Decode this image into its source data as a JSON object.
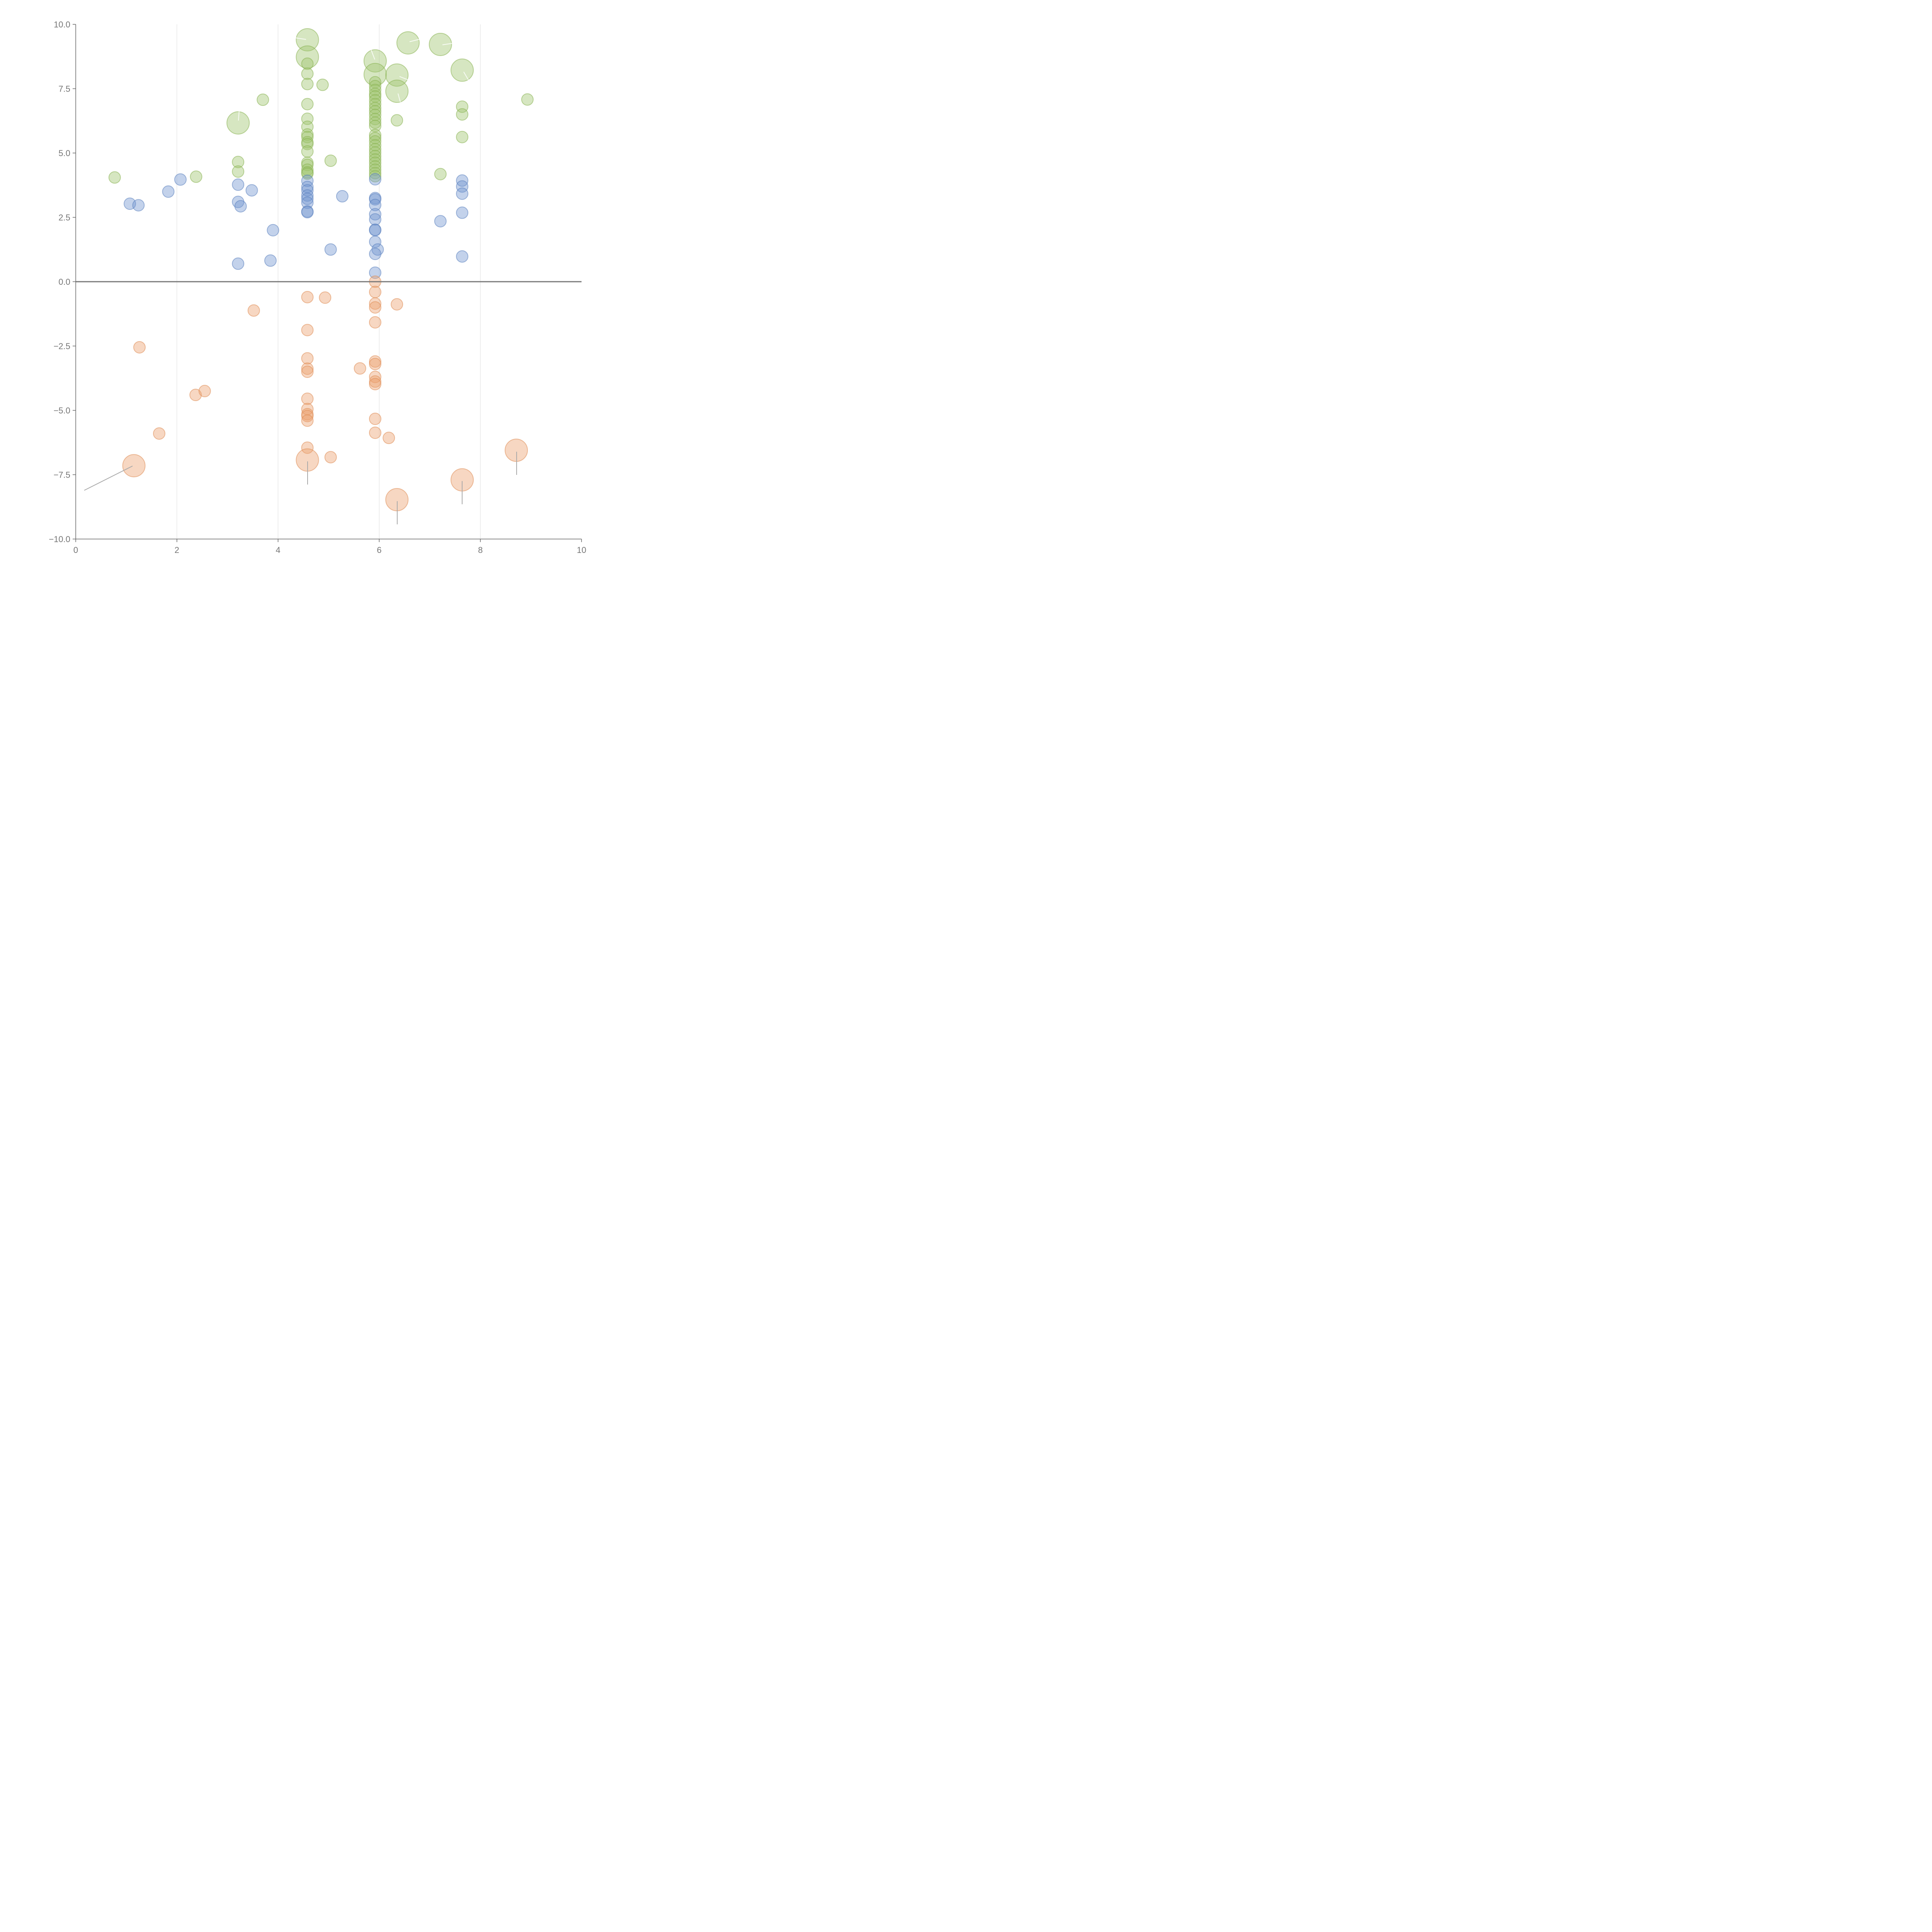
{
  "chart_data": {
    "type": "scatter",
    "subtype": "bubble",
    "title": "",
    "xlabel": "",
    "ylabel": "",
    "xlim": [
      0,
      10
    ],
    "ylim": [
      -10,
      10
    ],
    "x_ticks": [
      0,
      2,
      4,
      6,
      8,
      10
    ],
    "y_ticks": [
      -10,
      -7.5,
      -5,
      -2.5,
      0,
      2.5,
      5,
      7.5,
      10
    ],
    "x_tick_labels": [
      "0",
      "2",
      "4",
      "6",
      "8",
      "10"
    ],
    "y_tick_labels": [
      "−10.0",
      "−7.5",
      "−5.0",
      "−2.5",
      "0.0",
      "2.5",
      "5.0",
      "7.5",
      "10.0"
    ],
    "grid": "vertical",
    "reference_line_y": 0,
    "legend": "none",
    "colors": {
      "green": "#9dc36b",
      "green_stroke": "#86b04f",
      "blue": "#6f94cf",
      "blue_stroke": "#5a80be",
      "orange": "#eca06d",
      "orange_stroke": "#de8a52"
    },
    "series": [
      {
        "name": "green",
        "points": [
          {
            "x": 0.77,
            "y": 4.05,
            "size": 1
          },
          {
            "x": 2.38,
            "y": 4.08,
            "size": 1
          },
          {
            "x": 3.21,
            "y": 4.65,
            "size": 1
          },
          {
            "x": 3.21,
            "y": 4.28,
            "size": 1
          },
          {
            "x": 3.21,
            "y": 6.17,
            "size": 3
          },
          {
            "x": 3.7,
            "y": 7.07,
            "size": 1
          },
          {
            "x": 4.58,
            "y": 9.4,
            "size": 3
          },
          {
            "x": 4.58,
            "y": 8.73,
            "size": 3
          },
          {
            "x": 4.58,
            "y": 8.47,
            "size": 1
          },
          {
            "x": 4.58,
            "y": 8.08,
            "size": 1
          },
          {
            "x": 4.58,
            "y": 7.68,
            "size": 1
          },
          {
            "x": 4.58,
            "y": 6.9,
            "size": 1
          },
          {
            "x": 4.58,
            "y": 6.33,
            "size": 1
          },
          {
            "x": 4.58,
            "y": 6.02,
            "size": 1
          },
          {
            "x": 4.58,
            "y": 5.72,
            "size": 1
          },
          {
            "x": 4.58,
            "y": 5.62,
            "size": 1
          },
          {
            "x": 4.58,
            "y": 5.42,
            "size": 1
          },
          {
            "x": 4.58,
            "y": 5.35,
            "size": 1
          },
          {
            "x": 4.58,
            "y": 5.06,
            "size": 1
          },
          {
            "x": 4.58,
            "y": 4.62,
            "size": 1
          },
          {
            "x": 4.58,
            "y": 4.54,
            "size": 1
          },
          {
            "x": 4.58,
            "y": 4.35,
            "size": 1
          },
          {
            "x": 4.58,
            "y": 4.25,
            "size": 1
          },
          {
            "x": 4.58,
            "y": 4.2,
            "size": 1
          },
          {
            "x": 4.88,
            "y": 7.65,
            "size": 1
          },
          {
            "x": 5.04,
            "y": 4.7,
            "size": 1
          },
          {
            "x": 5.92,
            "y": 8.58,
            "size": 3
          },
          {
            "x": 5.92,
            "y": 8.05,
            "size": 3
          },
          {
            "x": 5.92,
            "y": 7.75,
            "size": 1
          },
          {
            "x": 5.92,
            "y": 7.6,
            "size": 1
          },
          {
            "x": 5.92,
            "y": 7.45,
            "size": 1
          },
          {
            "x": 5.92,
            "y": 7.3,
            "size": 1
          },
          {
            "x": 5.92,
            "y": 7.2,
            "size": 1
          },
          {
            "x": 5.92,
            "y": 7.05,
            "size": 1
          },
          {
            "x": 5.92,
            "y": 6.9,
            "size": 1
          },
          {
            "x": 5.92,
            "y": 6.75,
            "size": 1
          },
          {
            "x": 5.92,
            "y": 6.62,
            "size": 1
          },
          {
            "x": 5.92,
            "y": 6.48,
            "size": 1
          },
          {
            "x": 5.92,
            "y": 6.32,
            "size": 1
          },
          {
            "x": 5.92,
            "y": 6.18,
            "size": 1
          },
          {
            "x": 5.92,
            "y": 6.05,
            "size": 1
          },
          {
            "x": 5.92,
            "y": 5.7,
            "size": 1
          },
          {
            "x": 5.92,
            "y": 5.58,
            "size": 1
          },
          {
            "x": 5.92,
            "y": 5.45,
            "size": 1
          },
          {
            "x": 5.92,
            "y": 5.3,
            "size": 1
          },
          {
            "x": 5.92,
            "y": 5.15,
            "size": 1
          },
          {
            "x": 5.92,
            "y": 5.02,
            "size": 1
          },
          {
            "x": 5.92,
            "y": 4.88,
            "size": 1
          },
          {
            "x": 5.92,
            "y": 4.75,
            "size": 1
          },
          {
            "x": 5.92,
            "y": 4.62,
            "size": 1
          },
          {
            "x": 5.92,
            "y": 4.48,
            "size": 1
          },
          {
            "x": 5.92,
            "y": 4.35,
            "size": 1
          },
          {
            "x": 5.92,
            "y": 4.22,
            "size": 1
          },
          {
            "x": 5.92,
            "y": 4.1,
            "size": 1
          },
          {
            "x": 6.35,
            "y": 8.03,
            "size": 3
          },
          {
            "x": 6.35,
            "y": 7.4,
            "size": 3
          },
          {
            "x": 6.35,
            "y": 6.27,
            "size": 1
          },
          {
            "x": 6.57,
            "y": 9.28,
            "size": 3
          },
          {
            "x": 7.21,
            "y": 9.22,
            "size": 3
          },
          {
            "x": 7.21,
            "y": 4.18,
            "size": 1
          },
          {
            "x": 7.64,
            "y": 8.22,
            "size": 3
          },
          {
            "x": 7.64,
            "y": 6.8,
            "size": 1
          },
          {
            "x": 7.64,
            "y": 6.5,
            "size": 1
          },
          {
            "x": 7.64,
            "y": 5.62,
            "size": 1
          },
          {
            "x": 8.93,
            "y": 7.08,
            "size": 1
          }
        ]
      },
      {
        "name": "blue",
        "points": [
          {
            "x": 1.07,
            "y": 3.03,
            "size": 1
          },
          {
            "x": 1.24,
            "y": 2.97,
            "size": 1
          },
          {
            "x": 1.83,
            "y": 3.5,
            "size": 1
          },
          {
            "x": 2.07,
            "y": 3.97,
            "size": 1
          },
          {
            "x": 3.21,
            "y": 3.77,
            "size": 1
          },
          {
            "x": 3.21,
            "y": 3.1,
            "size": 1
          },
          {
            "x": 3.26,
            "y": 2.93,
            "size": 1
          },
          {
            "x": 3.21,
            "y": 0.7,
            "size": 1
          },
          {
            "x": 3.48,
            "y": 3.55,
            "size": 1
          },
          {
            "x": 3.85,
            "y": 0.82,
            "size": 1
          },
          {
            "x": 3.9,
            "y": 2.0,
            "size": 1
          },
          {
            "x": 4.58,
            "y": 3.92,
            "size": 1
          },
          {
            "x": 4.58,
            "y": 3.68,
            "size": 1
          },
          {
            "x": 4.58,
            "y": 3.55,
            "size": 1
          },
          {
            "x": 4.58,
            "y": 3.35,
            "size": 1
          },
          {
            "x": 4.58,
            "y": 3.22,
            "size": 1
          },
          {
            "x": 4.58,
            "y": 3.07,
            "size": 1
          },
          {
            "x": 4.58,
            "y": 2.73,
            "size": 1
          },
          {
            "x": 4.58,
            "y": 2.7,
            "size": 1
          },
          {
            "x": 5.04,
            "y": 1.25,
            "size": 1
          },
          {
            "x": 5.27,
            "y": 3.32,
            "size": 1
          },
          {
            "x": 5.92,
            "y": 3.98,
            "size": 1
          },
          {
            "x": 5.92,
            "y": 3.25,
            "size": 1
          },
          {
            "x": 5.92,
            "y": 3.2,
            "size": 1
          },
          {
            "x": 5.92,
            "y": 2.98,
            "size": 1
          },
          {
            "x": 5.92,
            "y": 2.62,
            "size": 1
          },
          {
            "x": 5.92,
            "y": 2.42,
            "size": 1
          },
          {
            "x": 5.92,
            "y": 2.02,
            "size": 1
          },
          {
            "x": 5.92,
            "y": 2.0,
            "size": 1
          },
          {
            "x": 5.92,
            "y": 1.55,
            "size": 1
          },
          {
            "x": 5.97,
            "y": 1.25,
            "size": 1
          },
          {
            "x": 5.92,
            "y": 1.08,
            "size": 1
          },
          {
            "x": 5.92,
            "y": 0.35,
            "size": 1
          },
          {
            "x": 7.21,
            "y": 2.35,
            "size": 1
          },
          {
            "x": 7.64,
            "y": 3.93,
            "size": 1
          },
          {
            "x": 7.64,
            "y": 3.7,
            "size": 1
          },
          {
            "x": 7.64,
            "y": 3.42,
            "size": 1
          },
          {
            "x": 7.64,
            "y": 2.68,
            "size": 1
          },
          {
            "x": 7.64,
            "y": 0.98,
            "size": 1
          }
        ]
      },
      {
        "name": "orange",
        "points": [
          {
            "x": 1.15,
            "y": -7.15,
            "size": 3
          },
          {
            "x": 1.26,
            "y": -2.55,
            "size": 1
          },
          {
            "x": 1.65,
            "y": -5.9,
            "size": 1
          },
          {
            "x": 2.37,
            "y": -4.4,
            "size": 1
          },
          {
            "x": 2.55,
            "y": -4.25,
            "size": 1
          },
          {
            "x": 3.52,
            "y": -1.12,
            "size": 1
          },
          {
            "x": 4.58,
            "y": -0.6,
            "size": 1
          },
          {
            "x": 4.58,
            "y": -1.88,
            "size": 1
          },
          {
            "x": 4.58,
            "y": -2.98,
            "size": 1
          },
          {
            "x": 4.58,
            "y": -3.38,
            "size": 1
          },
          {
            "x": 4.58,
            "y": -3.5,
            "size": 1
          },
          {
            "x": 4.58,
            "y": -4.55,
            "size": 1
          },
          {
            "x": 4.58,
            "y": -4.95,
            "size": 1
          },
          {
            "x": 4.58,
            "y": -5.15,
            "size": 1
          },
          {
            "x": 4.58,
            "y": -5.22,
            "size": 1
          },
          {
            "x": 4.58,
            "y": -5.4,
            "size": 1
          },
          {
            "x": 4.58,
            "y": -6.45,
            "size": 1
          },
          {
            "x": 4.58,
            "y": -6.93,
            "size": 3
          },
          {
            "x": 4.93,
            "y": -0.62,
            "size": 1
          },
          {
            "x": 5.04,
            "y": -6.82,
            "size": 1
          },
          {
            "x": 5.62,
            "y": -3.37,
            "size": 1
          },
          {
            "x": 5.92,
            "y": 0.0,
            "size": 1
          },
          {
            "x": 5.92,
            "y": -0.4,
            "size": 1
          },
          {
            "x": 5.92,
            "y": -0.85,
            "size": 1
          },
          {
            "x": 5.92,
            "y": -1.0,
            "size": 1
          },
          {
            "x": 5.92,
            "y": -1.58,
            "size": 1
          },
          {
            "x": 5.92,
            "y": -3.1,
            "size": 1
          },
          {
            "x": 5.92,
            "y": -3.2,
            "size": 1
          },
          {
            "x": 5.92,
            "y": -3.7,
            "size": 1
          },
          {
            "x": 5.92,
            "y": -3.88,
            "size": 1
          },
          {
            "x": 5.92,
            "y": -3.98,
            "size": 1
          },
          {
            "x": 5.92,
            "y": -5.33,
            "size": 1
          },
          {
            "x": 5.92,
            "y": -5.87,
            "size": 1
          },
          {
            "x": 6.19,
            "y": -6.07,
            "size": 1
          },
          {
            "x": 6.35,
            "y": -0.88,
            "size": 1
          },
          {
            "x": 6.35,
            "y": -8.47,
            "size": 3
          },
          {
            "x": 7.64,
            "y": -7.7,
            "size": 3
          },
          {
            "x": 8.71,
            "y": -6.55,
            "size": 3
          }
        ]
      }
    ]
  }
}
